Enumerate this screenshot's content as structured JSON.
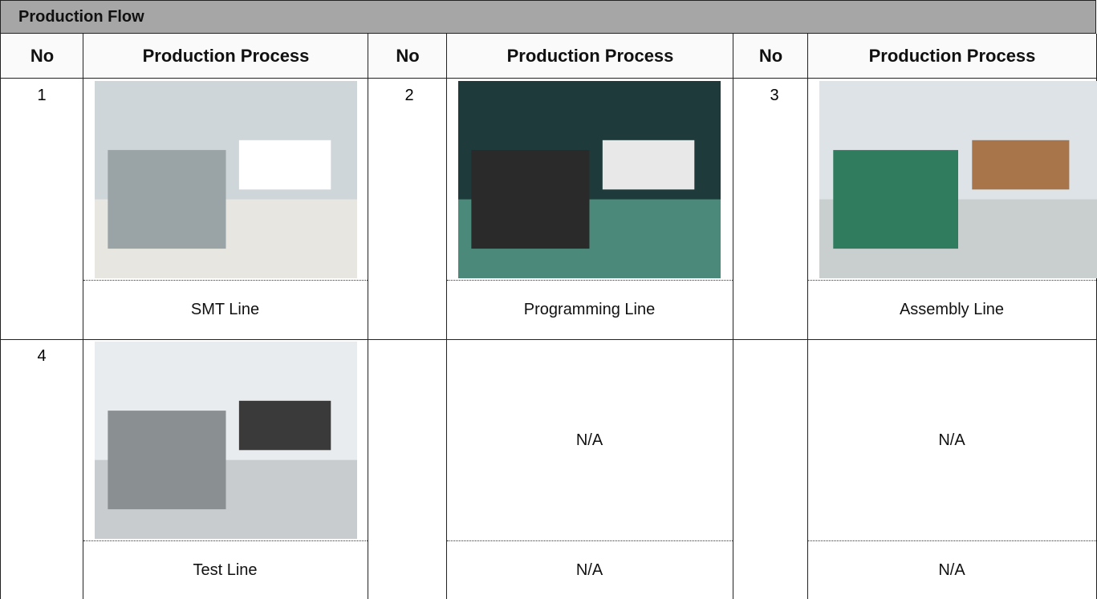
{
  "title": "Production Flow",
  "header": [
    "No",
    "Production Process",
    "No",
    "Production Process",
    "No",
    "Production Process"
  ],
  "rows": [
    [
      {
        "no": "1",
        "caption": "SMT Line"
      },
      {
        "no": "2",
        "caption": "Programming Line"
      },
      {
        "no": "3",
        "caption": "Assembly Line"
      }
    ],
    [
      {
        "no": "4",
        "caption": "Test Line"
      },
      {
        "image_text": "N/A",
        "caption": "N/A"
      },
      {
        "image_text": "N/A",
        "caption": "N/A"
      }
    ]
  ]
}
